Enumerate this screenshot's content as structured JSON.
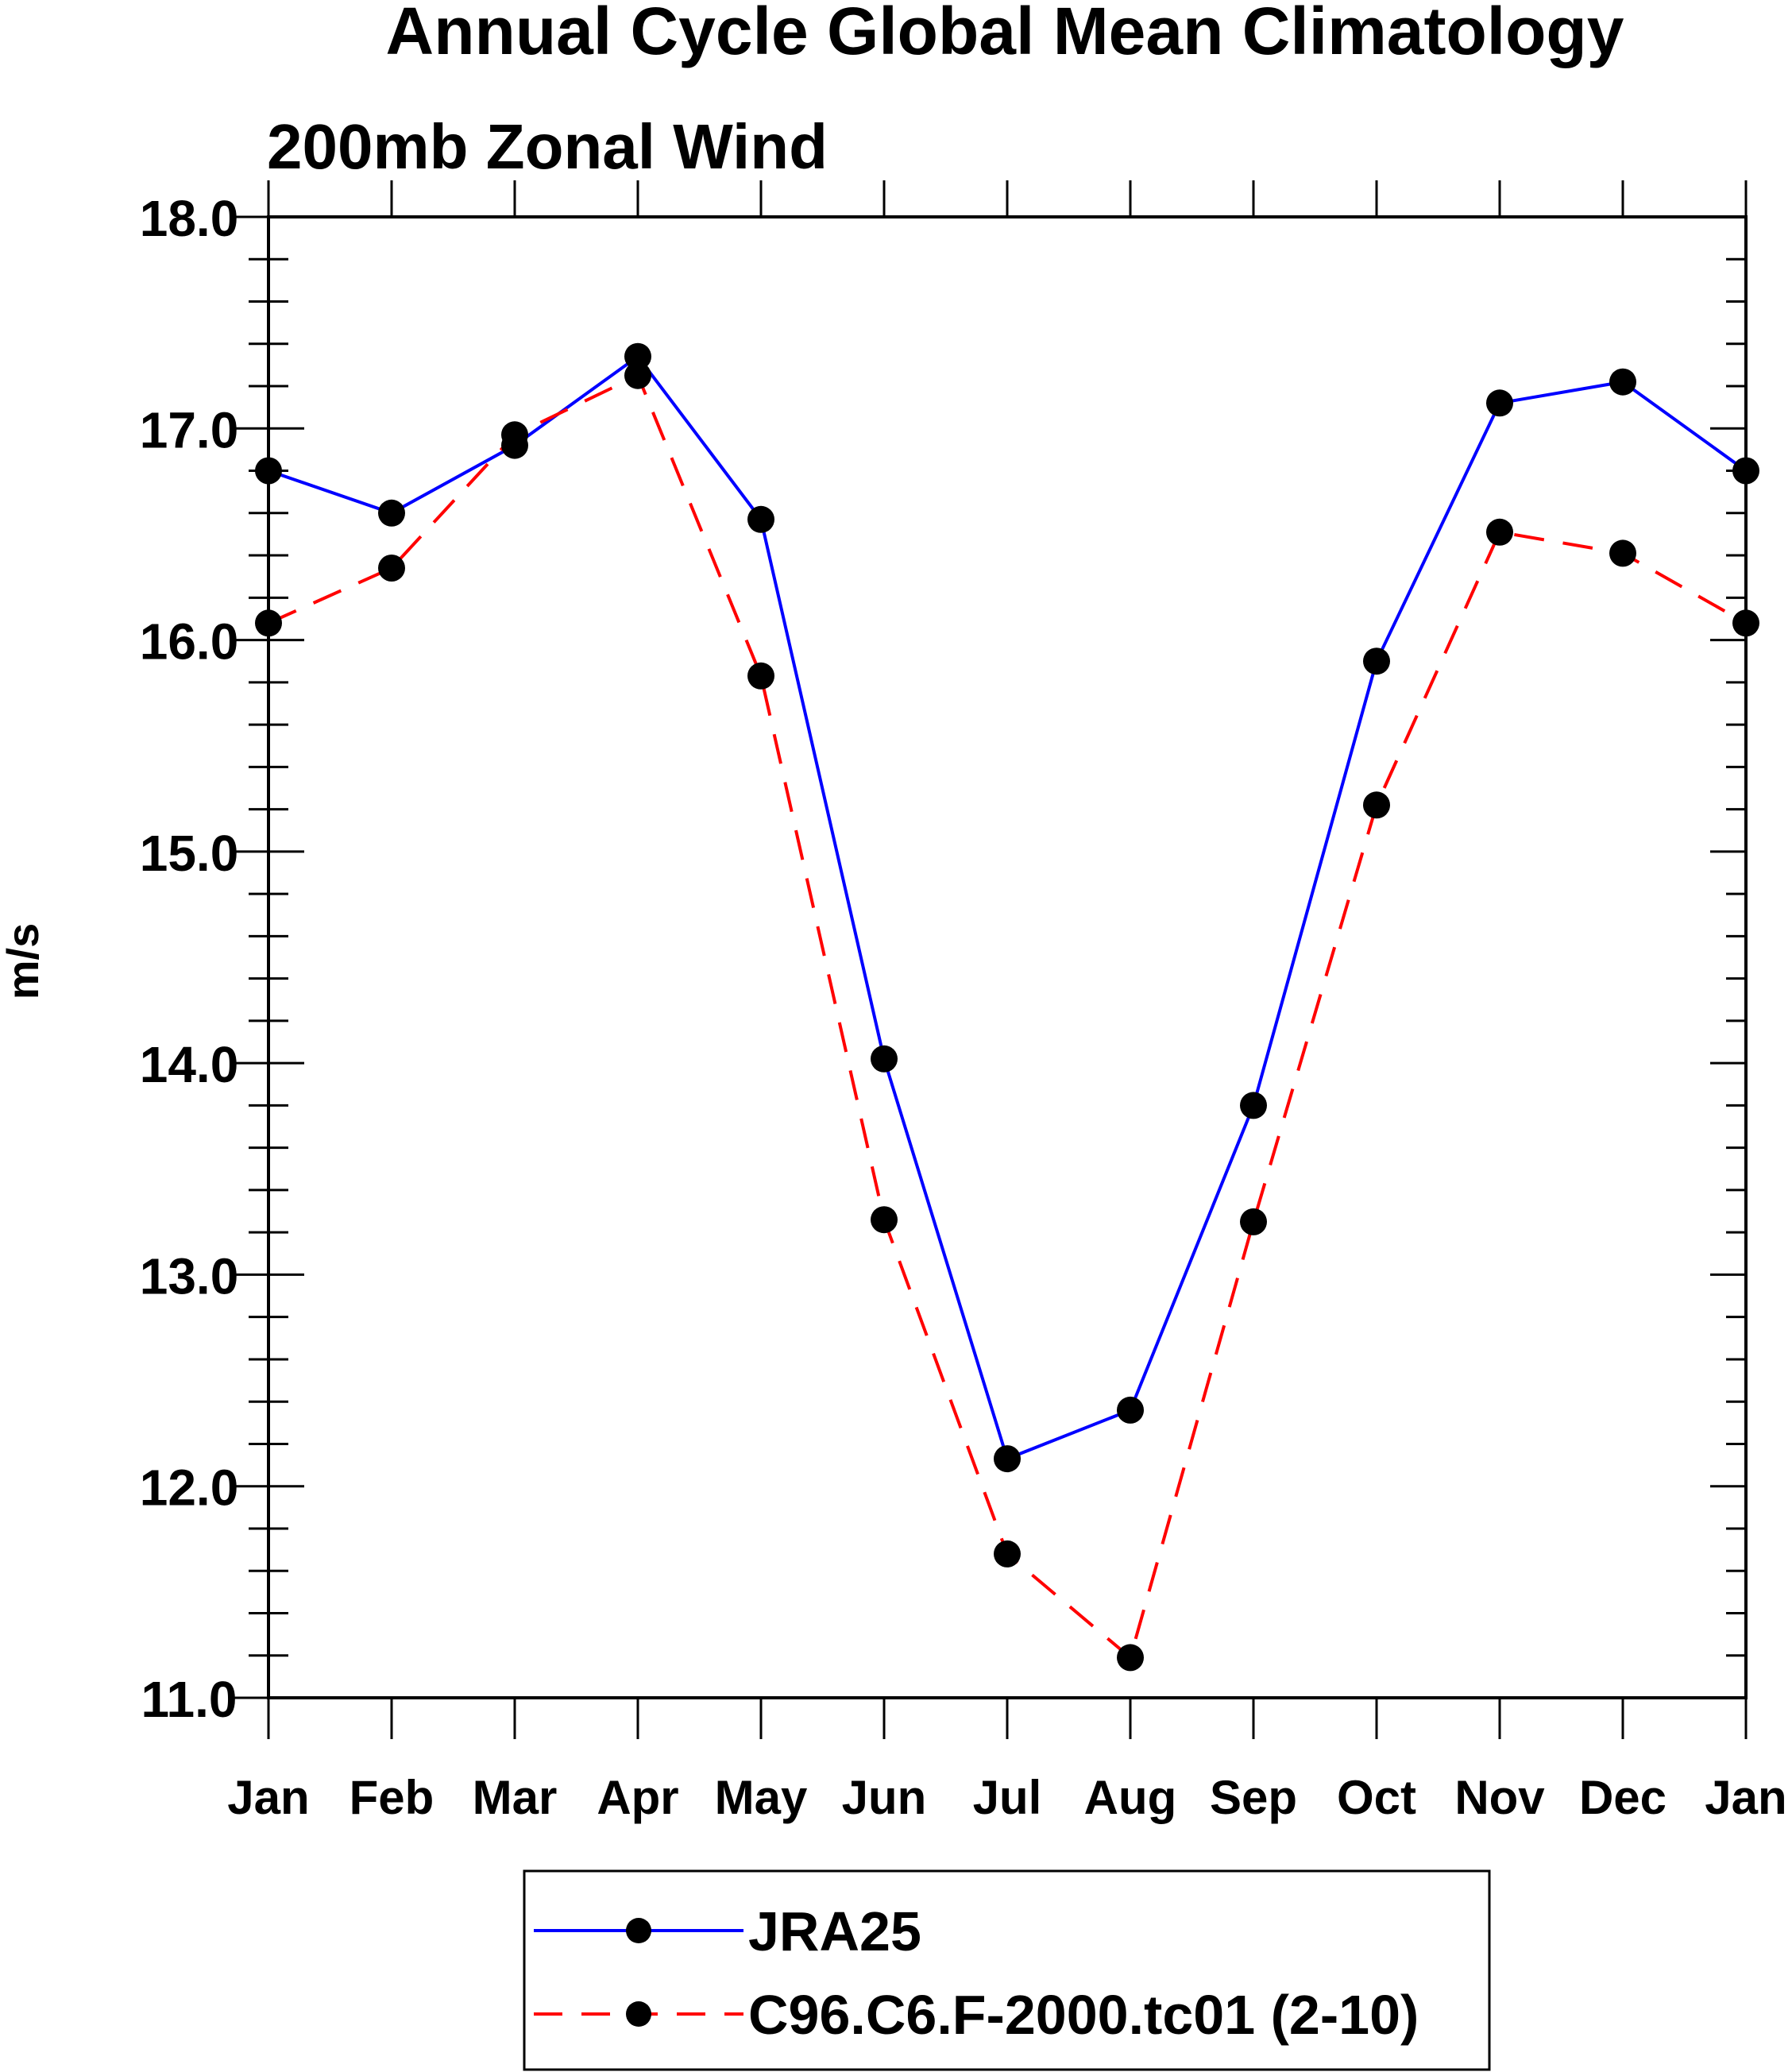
{
  "chart_data": {
    "type": "line",
    "title": "Annual Cycle Global Mean Climatology",
    "subtitle": "200mb Zonal Wind",
    "xlabel": "",
    "ylabel": "m/s",
    "categories": [
      "Jan",
      "Feb",
      "Mar",
      "Apr",
      "May",
      "Jun",
      "Jul",
      "Aug",
      "Sep",
      "Oct",
      "Nov",
      "Dec",
      "Jan"
    ],
    "ylim": [
      11.0,
      18.0
    ],
    "yticks": [
      "11.0",
      "12.0",
      "13.0",
      "14.0",
      "15.0",
      "16.0",
      "17.0",
      "18.0"
    ],
    "ytick_values": [
      11.0,
      12.0,
      13.0,
      14.0,
      15.0,
      16.0,
      17.0,
      18.0
    ],
    "series": [
      {
        "name": "JRA25",
        "color": "#0000ff",
        "dash": "solid",
        "marker": "filled-circle",
        "values": [
          16.8,
          16.6,
          16.92,
          17.34,
          16.57,
          14.02,
          12.13,
          12.36,
          13.8,
          15.9,
          17.12,
          17.22,
          16.8
        ]
      },
      {
        "name": "C96.C6.F-2000.tc01 (2-10)",
        "color": "#ff0000",
        "dash": "dashed",
        "marker": "filled-circle",
        "values": [
          16.08,
          16.34,
          16.97,
          17.25,
          15.83,
          13.26,
          11.68,
          11.19,
          13.25,
          15.22,
          16.51,
          16.41,
          16.08
        ]
      }
    ],
    "legend": {
      "placement": "bottom-center",
      "entries": [
        "JRA25",
        "C96.C6.F-2000.tc01 (2-10)"
      ]
    },
    "grid": false
  }
}
